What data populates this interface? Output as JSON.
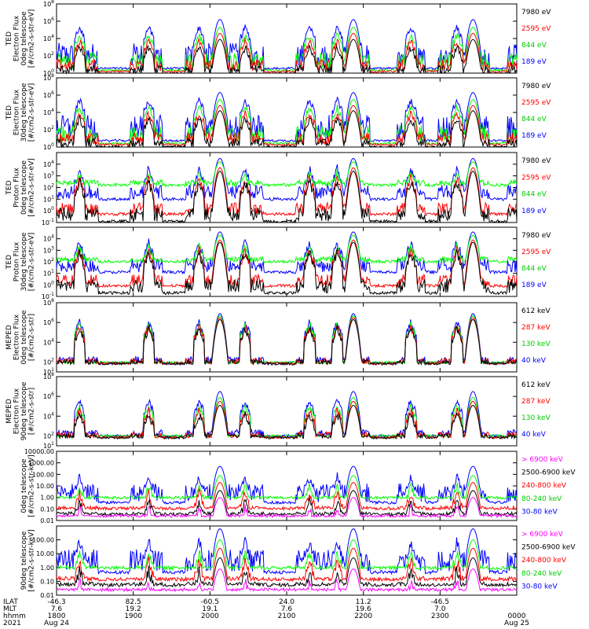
{
  "colors": {
    "blue": "#0000ff",
    "red": "#ff0000",
    "green": "#00ff00",
    "black": "#000000",
    "magenta": "#ff00ff"
  },
  "chart_data": [
    {
      "type": "line",
      "name": "ted-e-0deg",
      "ylabel": [
        "TED",
        "Electron Flux",
        "0deg telescope",
        "[#/cm2-s-str-eV]"
      ],
      "ylog": true,
      "ylim": [
        1,
        100000000.0
      ],
      "yticks": [
        {
          "v": 1,
          "t": "10^0"
        },
        {
          "v": 100,
          "t": "10^2"
        },
        {
          "v": 10000,
          "t": "10^4"
        },
        {
          "v": 1000000.0,
          "t": "10^6"
        },
        {
          "v": 100000000.0,
          "t": "10^8"
        }
      ],
      "series": [
        {
          "name": "7980 eV",
          "color": "#000000",
          "base": 0.4,
          "band": 1.0,
          "peak": 3.0,
          "cap": 7.2
        },
        {
          "name": "2595 eV",
          "color": "#ff0000",
          "base": 0.9,
          "band": 1.4,
          "peak": 3.7,
          "cap": 7.2
        },
        {
          "name": "844 eV",
          "color": "#00ff00",
          "base": 1.4,
          "band": 2.0,
          "peak": 4.4,
          "cap": 7.2
        },
        {
          "name": "189 eV",
          "color": "#0000ff",
          "base": 2.1,
          "band": 2.8,
          "peak": 5.3,
          "cap": 7.4
        }
      ]
    },
    {
      "type": "line",
      "name": "ted-e-30deg",
      "ylabel": [
        "TED",
        "Electron Flux",
        "30deg telescope",
        "[#/cm2-s-str-eV]"
      ],
      "ylog": true,
      "ylim": [
        1,
        100000000.0
      ],
      "yticks": [
        {
          "v": 1,
          "t": "10^0"
        },
        {
          "v": 100,
          "t": "10^2"
        },
        {
          "v": 10000,
          "t": "10^4"
        },
        {
          "v": 1000000.0,
          "t": "10^6"
        },
        {
          "v": 100000000.0,
          "t": "10^8"
        }
      ],
      "series": [
        {
          "name": "7980 eV",
          "color": "#000000",
          "base": 0.5,
          "band": 1.0,
          "peak": 3.3,
          "cap": 7.2
        },
        {
          "name": "2595 eV",
          "color": "#ff0000",
          "base": 1.0,
          "band": 1.4,
          "peak": 3.9,
          "cap": 7.2
        },
        {
          "name": "844 eV",
          "color": "#00ff00",
          "base": 1.5,
          "band": 2.0,
          "peak": 4.6,
          "cap": 7.2
        },
        {
          "name": "189 eV",
          "color": "#0000ff",
          "base": 2.3,
          "band": 2.8,
          "peak": 5.4,
          "cap": 7.4
        }
      ]
    },
    {
      "type": "line",
      "name": "ted-p-0deg",
      "ylabel": [
        "TED",
        "Proton Flux",
        "0deg telescope",
        "[#/cm2-s-str-eV]"
      ],
      "ylog": true,
      "ylim": [
        0.1,
        100000.0
      ],
      "yticks": [
        {
          "v": 0.1,
          "t": "10^-1"
        },
        {
          "v": 1,
          "t": "10^0"
        },
        {
          "v": 10,
          "t": "10^1"
        },
        {
          "v": 100,
          "t": "10^2"
        },
        {
          "v": 1000,
          "t": "10^3"
        },
        {
          "v": 10000,
          "t": "10^4"
        }
      ],
      "series": [
        {
          "name": "7980 eV",
          "color": "#000000",
          "base": -0.3,
          "band": 1.2,
          "peak": 2.5,
          "cap": 4.6
        },
        {
          "name": "2595 eV",
          "color": "#ff0000",
          "base": 0.2,
          "band": 1.0,
          "peak": 2.8,
          "cap": 4.6
        },
        {
          "name": "844 eV",
          "color": "#00ff00",
          "base": 2.4,
          "band": 0.5,
          "peak": 3.3,
          "cap": 4.6
        },
        {
          "name": "189 eV",
          "color": "#0000ff",
          "base": 1.6,
          "band": 1.2,
          "peak": 3.6,
          "cap": 4.8
        }
      ]
    },
    {
      "type": "line",
      "name": "ted-p-30deg",
      "ylabel": [
        "TED",
        "Proton Flux",
        "30deg telescope",
        "[#/cm2-s-str-eV]"
      ],
      "ylog": true,
      "ylim": [
        0.1,
        100000.0
      ],
      "yticks": [
        {
          "v": 0.1,
          "t": "10^-1"
        },
        {
          "v": 1,
          "t": "10^0"
        },
        {
          "v": 10,
          "t": "10^1"
        },
        {
          "v": 100,
          "t": "10^2"
        },
        {
          "v": 1000,
          "t": "10^3"
        },
        {
          "v": 10000,
          "t": "10^4"
        }
      ],
      "series": [
        {
          "name": "7980 eV",
          "color": "#000000",
          "base": -0.1,
          "band": 1.2,
          "peak": 2.8,
          "cap": 4.6
        },
        {
          "name": "2595 eV",
          "color": "#ff0000",
          "base": 0.4,
          "band": 1.0,
          "peak": 3.0,
          "cap": 4.6
        },
        {
          "name": "844 eV",
          "color": "#00ff00",
          "base": 2.2,
          "band": 0.5,
          "peak": 3.4,
          "cap": 4.6
        },
        {
          "name": "189 eV",
          "color": "#0000ff",
          "base": 1.7,
          "band": 1.2,
          "peak": 3.7,
          "cap": 4.8
        }
      ]
    },
    {
      "type": "line",
      "name": "meped-e-0deg",
      "ylabel": [
        "MEPED",
        "Electron Flux",
        "0deg telescope",
        "[#/cm2-s-str]"
      ],
      "ylog": true,
      "ylim": [
        10,
        100000000.0
      ],
      "yticks": [
        {
          "v": 10,
          "t": "10^1"
        },
        {
          "v": 100,
          "t": "10^2"
        },
        {
          "v": 10000,
          "t": "10^4"
        },
        {
          "v": 1000000.0,
          "t": "10^6"
        },
        {
          "v": 100000000.0,
          "t": "10^8"
        }
      ],
      "series": [
        {
          "name": "612 keV",
          "color": "#000000",
          "base": 2.0,
          "band": 0.5,
          "peak": 5.4,
          "cap": 7.6
        },
        {
          "name": "287 keV",
          "color": "#ff0000",
          "base": 2.1,
          "band": 0.6,
          "peak": 5.6,
          "cap": 7.6
        },
        {
          "name": "130 keV",
          "color": "#00ff00",
          "base": 1.95,
          "band": 0.2,
          "peak": 5.8,
          "cap": 7.6
        },
        {
          "name": "40 keV",
          "color": "#0000ff",
          "base": 2.2,
          "band": 0.7,
          "peak": 6.0,
          "cap": 7.8
        }
      ]
    },
    {
      "type": "line",
      "name": "meped-e-90deg",
      "ylabel": [
        "MEPED",
        "Electron Flux",
        "90deg telescope",
        "[#/cm2-s-str]"
      ],
      "ylog": true,
      "ylim": [
        10,
        100000000.0
      ],
      "yticks": [
        {
          "v": 10,
          "t": "10^1"
        },
        {
          "v": 100,
          "t": "10^2"
        },
        {
          "v": 10000,
          "t": "10^4"
        },
        {
          "v": 1000000.0,
          "t": "10^6"
        },
        {
          "v": 100000000.0,
          "t": "10^8"
        }
      ],
      "series": [
        {
          "name": "612 keV",
          "color": "#000000",
          "base": 2.0,
          "band": 0.5,
          "peak": 4.2,
          "cap": 7.6
        },
        {
          "name": "287 keV",
          "color": "#ff0000",
          "base": 2.1,
          "band": 0.6,
          "peak": 4.6,
          "cap": 7.6
        },
        {
          "name": "130 keV",
          "color": "#00ff00",
          "base": 2.0,
          "band": 0.2,
          "peak": 5.0,
          "cap": 7.6
        },
        {
          "name": "40 keV",
          "color": "#0000ff",
          "base": 2.3,
          "band": 0.7,
          "peak": 5.6,
          "cap": 7.8
        }
      ]
    },
    {
      "type": "line",
      "name": "meped-p-0deg",
      "ylabel": [
        "0deg telescope",
        "[#/cm2-s-str-keV]"
      ],
      "ylog": true,
      "ylim": [
        0.01,
        10000
      ],
      "yticks": [
        {
          "v": 0.01,
          "t": "0.01"
        },
        {
          "v": 0.1,
          "t": "0.10"
        },
        {
          "v": 1,
          "t": "1.00"
        },
        {
          "v": 10,
          "t": "10.00"
        },
        {
          "v": 100,
          "t": "100.00"
        },
        {
          "v": 1000,
          "t": "1000.00"
        },
        {
          "v": 10000,
          "t": "10000.00"
        }
      ],
      "series": [
        {
          "name": "> 6900 keV",
          "color": "#ff00ff",
          "base": -1.6,
          "band": 0.2,
          "peak": -0.9,
          "cap": 3.8
        },
        {
          "name": "2500-6900 keV",
          "color": "#000000",
          "base": -1.4,
          "band": 0.3,
          "peak": -0.3,
          "cap": 3.8
        },
        {
          "name": "240-800 keV",
          "color": "#ff0000",
          "base": -0.9,
          "band": 0.3,
          "peak": 0.4,
          "cap": 3.8
        },
        {
          "name": "80-240 keV",
          "color": "#00ff00",
          "base": 0.0,
          "band": 0.25,
          "peak": 1.0,
          "cap": 3.8
        },
        {
          "name": "30-80 keV",
          "color": "#0000ff",
          "base": 0.4,
          "band": 1.6,
          "peak": 1.8,
          "cap": 3.9
        }
      ]
    },
    {
      "type": "line",
      "name": "meped-p-90deg",
      "ylabel": [
        "90deg telescope",
        "[#/cm2-s-str-keV]"
      ],
      "ylog": true,
      "ylim": [
        0.01,
        1000
      ],
      "yticks": [
        {
          "v": 0.01,
          "t": "0.01"
        },
        {
          "v": 0.1,
          "t": "0.10"
        },
        {
          "v": 1,
          "t": "1.00"
        },
        {
          "v": 10,
          "t": "10.00"
        },
        {
          "v": 100,
          "t": "100.00"
        }
      ],
      "series": [
        {
          "name": "> 6900 keV",
          "color": "#ff00ff",
          "base": -1.6,
          "band": 0.2,
          "peak": -1.0,
          "cap": 2.9
        },
        {
          "name": "2500-6900 keV",
          "color": "#000000",
          "base": -1.2,
          "band": 0.3,
          "peak": -0.2,
          "cap": 2.9
        },
        {
          "name": "240-800 keV",
          "color": "#ff0000",
          "base": -0.8,
          "band": 0.3,
          "peak": 0.5,
          "cap": 2.9
        },
        {
          "name": "80-240 keV",
          "color": "#00ff00",
          "base": 0.0,
          "band": 0.25,
          "peak": 1.1,
          "cap": 2.9
        },
        {
          "name": "30-80 keV",
          "color": "#0000ff",
          "base": 0.5,
          "band": 1.6,
          "peak": 1.9,
          "cap": 2.95
        }
      ]
    }
  ],
  "xaxis": {
    "row_labels": [
      "ILAT",
      "MLT",
      "hhmm",
      "2021"
    ],
    "ticks": [
      {
        "ilat": "-46.3",
        "mlt": "7.6",
        "hhmm": "1800",
        "date": "Aug 24"
      },
      {
        "ilat": "82.5",
        "mlt": "19.2",
        "hhmm": "1900",
        "date": ""
      },
      {
        "ilat": "-60.5",
        "mlt": "19.1",
        "hhmm": "2000",
        "date": ""
      },
      {
        "ilat": "24.0",
        "mlt": "7.6",
        "hhmm": "2100",
        "date": ""
      },
      {
        "ilat": "11.2",
        "mlt": "19.6",
        "hhmm": "2200",
        "date": ""
      },
      {
        "ilat": "-46.5",
        "mlt": "7.0",
        "hhmm": "2300",
        "date": ""
      },
      {
        "ilat": "",
        "mlt": "",
        "hhmm": "0000",
        "date": "Aug 25"
      }
    ]
  }
}
